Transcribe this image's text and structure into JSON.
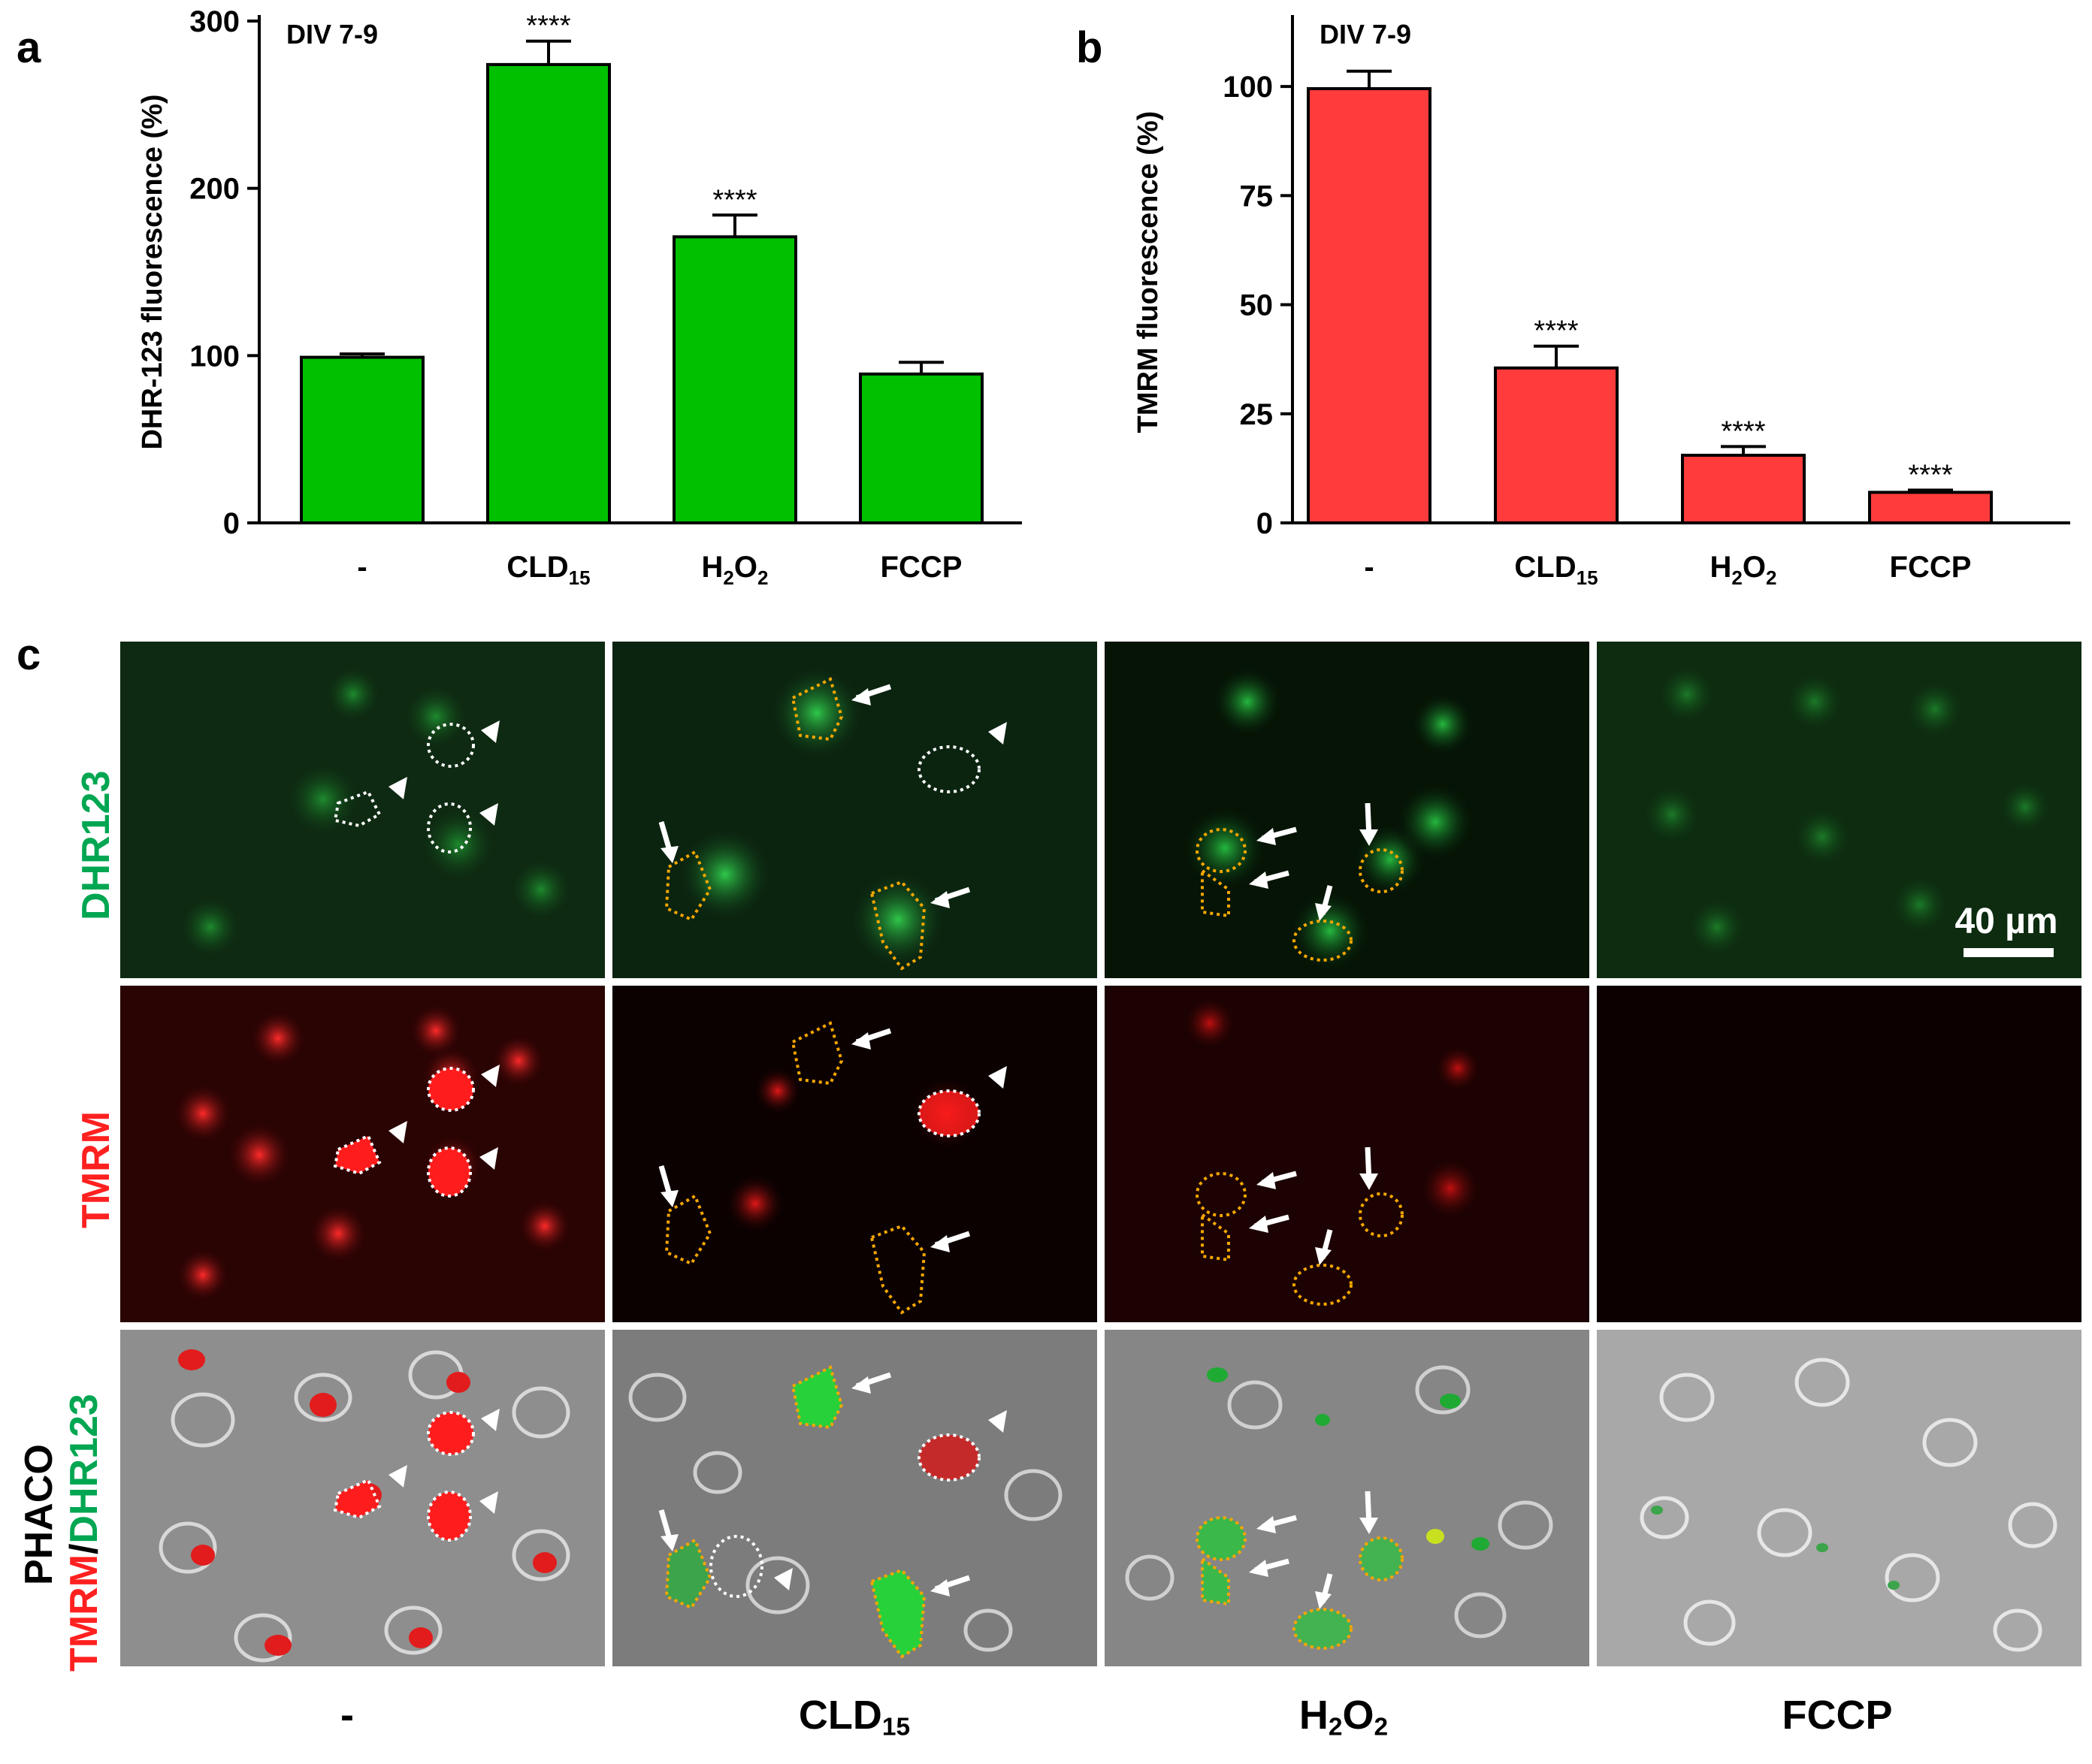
{
  "panels": {
    "a": {
      "letter": "a"
    },
    "b": {
      "letter": "b"
    },
    "c": {
      "letter": "c"
    }
  },
  "chart_data": [
    {
      "type": "bar",
      "panel": "a",
      "annotation": "DIV 7-9",
      "ylabel": "DHR-123 fluorescence (%)",
      "ylim": [
        0,
        300
      ],
      "yticks": [
        0,
        100,
        200,
        300
      ],
      "categories": [
        "-",
        "CLD15",
        "H2O2",
        "FCCP"
      ],
      "category_labels": [
        {
          "main": "-",
          "sub": "",
          "tail": ""
        },
        {
          "main": "CLD",
          "sub": "15",
          "tail": ""
        },
        {
          "main": "H",
          "sub": "2",
          "tail": "O",
          "sub2": "2"
        },
        {
          "main": "FCCP",
          "sub": "",
          "tail": ""
        }
      ],
      "values": [
        99,
        274,
        171,
        89
      ],
      "errors": [
        2,
        14,
        13,
        7
      ],
      "significance": [
        "",
        "****",
        "****",
        ""
      ],
      "color": "#00c000"
    },
    {
      "type": "bar",
      "panel": "b",
      "annotation": "DIV 7-9",
      "ylabel": "TMRM fluorescence (%)",
      "ylim": [
        0,
        115
      ],
      "yticks": [
        0,
        25,
        50,
        75,
        100
      ],
      "categories": [
        "-",
        "CLD15",
        "H2O2",
        "FCCP"
      ],
      "category_labels": [
        {
          "main": "-",
          "sub": "",
          "tail": ""
        },
        {
          "main": "CLD",
          "sub": "15",
          "tail": ""
        },
        {
          "main": "H",
          "sub": "2",
          "tail": "O",
          "sub2": "2"
        },
        {
          "main": "FCCP",
          "sub": "",
          "tail": ""
        }
      ],
      "values": [
        99.5,
        35.5,
        15.5,
        7
      ],
      "errors": [
        4,
        5,
        2,
        0.5
      ],
      "significance": [
        "",
        "****",
        "****",
        "****"
      ],
      "color": "#ff3b3b"
    }
  ],
  "micrographs": {
    "row_labels": {
      "dhr": "DHR123",
      "tmrm": "TMRM",
      "phaco_line1": "PHACO",
      "merge_red": "TMRM",
      "merge_slash": "/",
      "merge_green": "DHR123"
    },
    "row_label_colors": {
      "dhr": "#00a651",
      "tmrm": "#ff2020",
      "phaco": "#000000"
    },
    "column_labels": [
      {
        "main": "-",
        "sub": "",
        "tail": "",
        "sub2": ""
      },
      {
        "main": "CLD",
        "sub": "15",
        "tail": "",
        "sub2": ""
      },
      {
        "main": "H",
        "sub": "2",
        "tail": "O",
        "sub2": "2"
      },
      {
        "main": "FCCP",
        "sub": "",
        "tail": "",
        "sub2": ""
      }
    ],
    "scale_bar": "40 µm"
  }
}
